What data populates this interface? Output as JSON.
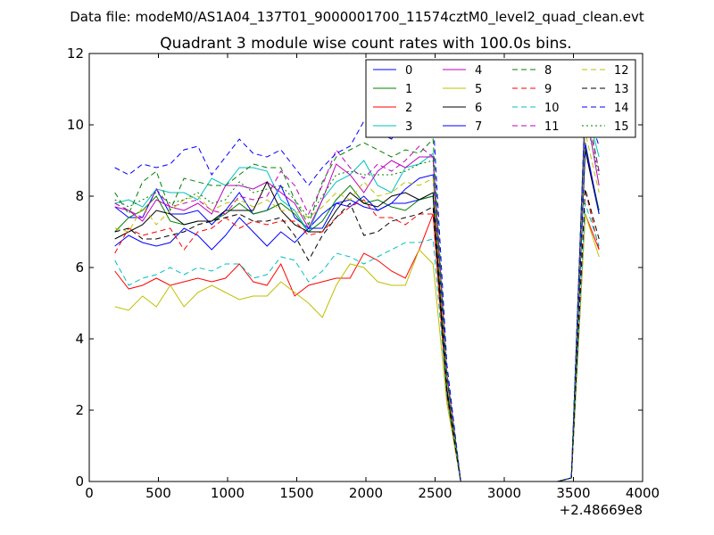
{
  "header": {
    "data_file": "Data file: modeM0/AS1A04_137T01_9000001700_11574cztM0_level2_quad_clean.evt"
  },
  "chart_data": {
    "type": "line",
    "title": "Quadrant 3 module wise count rates with 100.0s bins.",
    "xlabel": "",
    "ylabel": "",
    "x_offset_label": "+2.48669e8",
    "xlim": [
      0,
      4000
    ],
    "ylim": [
      0,
      12
    ],
    "x_ticks": [
      0,
      500,
      1000,
      1500,
      2000,
      2500,
      3000,
      3500,
      4000
    ],
    "y_ticks": [
      0,
      2,
      4,
      6,
      8,
      10,
      12
    ],
    "grid": false,
    "legend_position": "top-right",
    "x": [
      185,
      285,
      385,
      485,
      585,
      685,
      785,
      885,
      985,
      1085,
      1185,
      1285,
      1385,
      1485,
      1585,
      1685,
      1785,
      1885,
      1985,
      2085,
      2185,
      2285,
      2385,
      2485,
      2585,
      2685,
      2785,
      2885,
      2985,
      3085,
      3185,
      3285,
      3385,
      3485,
      3585,
      3685
    ],
    "series": [
      {
        "name": "0",
        "color": "#0000ff",
        "dash": "solid",
        "values": [
          7.7,
          7.4,
          7.4,
          8.2,
          7.5,
          7.5,
          7.6,
          7.2,
          7.6,
          8.1,
          7.5,
          7.6,
          8.3,
          7.4,
          7.1,
          7.5,
          7.8,
          7.9,
          7.7,
          7.6,
          7.8,
          7.8,
          7.9,
          8.0,
          2.6,
          0,
          0,
          0,
          0,
          0,
          0,
          0,
          0,
          0.1,
          9.3,
          7.6
        ]
      },
      {
        "name": "1",
        "color": "#008000",
        "dash": "solid",
        "values": [
          7.0,
          7.4,
          7.6,
          8.0,
          7.3,
          7.2,
          7.3,
          7.3,
          7.5,
          7.8,
          7.5,
          7.6,
          7.8,
          7.5,
          7.0,
          7.3,
          7.9,
          8.3,
          7.8,
          7.9,
          7.7,
          7.6,
          7.9,
          8.0,
          2.6,
          0,
          0,
          0,
          0,
          0,
          0,
          0,
          0,
          0.1,
          9.4,
          7.6
        ]
      },
      {
        "name": "2",
        "color": "#ff0000",
        "dash": "solid",
        "values": [
          5.9,
          5.4,
          5.5,
          5.7,
          5.5,
          5.6,
          5.7,
          5.6,
          5.7,
          6.1,
          5.6,
          5.5,
          6.1,
          5.2,
          5.5,
          5.6,
          5.7,
          5.7,
          6.4,
          6.2,
          5.9,
          5.7,
          6.5,
          7.5,
          2.4,
          0,
          0,
          0,
          0,
          0,
          0,
          0,
          0,
          0.1,
          7.5,
          6.5
        ]
      },
      {
        "name": "3",
        "color": "#00bfbf",
        "dash": "solid",
        "values": [
          7.8,
          7.9,
          7.7,
          8.2,
          8.1,
          8.1,
          7.9,
          8.5,
          8.3,
          8.8,
          8.8,
          8.7,
          7.9,
          7.6,
          7.0,
          7.9,
          8.4,
          8.6,
          9.0,
          8.3,
          8.1,
          8.8,
          8.9,
          9.2,
          3.0,
          0,
          0,
          0,
          0,
          0,
          0,
          0,
          0,
          0.1,
          10.6,
          9.1
        ]
      },
      {
        "name": "4",
        "color": "#bf00bf",
        "dash": "solid",
        "values": [
          7.7,
          7.6,
          7.3,
          7.9,
          7.7,
          7.6,
          7.8,
          7.5,
          8.3,
          8.3,
          8.2,
          8.4,
          8.1,
          7.8,
          7.1,
          7.9,
          8.9,
          8.6,
          8.1,
          8.7,
          9.0,
          8.8,
          9.1,
          9.1,
          3.0,
          0,
          0,
          0,
          0,
          0,
          0,
          0,
          0,
          0.1,
          10.5,
          8.3
        ]
      },
      {
        "name": "5",
        "color": "#bfbf00",
        "dash": "solid",
        "values": [
          4.9,
          4.8,
          5.2,
          4.9,
          5.5,
          4.9,
          5.3,
          5.5,
          5.3,
          5.1,
          5.2,
          5.2,
          5.6,
          5.3,
          5.0,
          4.6,
          5.5,
          6.1,
          6.0,
          5.6,
          5.5,
          5.5,
          6.5,
          6.1,
          2.2,
          0,
          0,
          0,
          0,
          0,
          0,
          0,
          0,
          0.1,
          7.5,
          6.3
        ]
      },
      {
        "name": "6",
        "color": "#000000",
        "dash": "solid",
        "values": [
          6.8,
          7.0,
          7.2,
          7.6,
          7.5,
          7.2,
          7.3,
          7.3,
          7.6,
          7.6,
          7.6,
          8.4,
          7.6,
          7.2,
          7.0,
          7.0,
          7.6,
          8.1,
          7.8,
          7.7,
          8.0,
          8.1,
          7.9,
          8.1,
          2.6,
          0,
          0,
          0,
          0,
          0,
          0,
          0,
          0,
          0.1,
          9.3,
          7.5
        ]
      },
      {
        "name": "7",
        "color": "#0000ff",
        "dash": "solid",
        "values": [
          6.6,
          6.9,
          6.7,
          6.6,
          6.7,
          7.1,
          6.9,
          6.5,
          6.9,
          7.4,
          7.0,
          6.6,
          7.0,
          6.7,
          7.1,
          7.1,
          7.8,
          7.7,
          8.0,
          7.6,
          7.8,
          8.2,
          8.5,
          8.6,
          2.9,
          0,
          0,
          0,
          0,
          0,
          0,
          0,
          0,
          0.1,
          9.5,
          7.5
        ]
      },
      {
        "name": "8",
        "color": "#008000",
        "dash": "dashed",
        "values": [
          8.1,
          7.5,
          8.4,
          8.7,
          7.6,
          8.5,
          8.4,
          8.3,
          8.3,
          8.6,
          8.9,
          8.8,
          8.8,
          7.9,
          7.2,
          8.4,
          9.1,
          9.3,
          9.5,
          9.3,
          9.1,
          9.3,
          9.2,
          9.6,
          3.1,
          0,
          0,
          0,
          0,
          0,
          0,
          0,
          0,
          0.1,
          10.7,
          8.7
        ]
      },
      {
        "name": "9",
        "color": "#ff0000",
        "dash": "dashed",
        "values": [
          6.4,
          7.1,
          6.9,
          7.0,
          7.1,
          6.5,
          7.0,
          7.1,
          7.4,
          7.1,
          7.3,
          7.2,
          7.3,
          7.3,
          6.9,
          7.0,
          7.4,
          7.7,
          7.9,
          7.4,
          7.4,
          7.2,
          7.5,
          7.5,
          2.4,
          0,
          0,
          0,
          0,
          0,
          0,
          0,
          0,
          0.1,
          8.2,
          6.5
        ]
      },
      {
        "name": "10",
        "color": "#00bfbf",
        "dash": "dashed",
        "values": [
          6.2,
          5.5,
          5.7,
          5.8,
          6.0,
          5.8,
          6.0,
          5.9,
          6.1,
          6.1,
          5.7,
          5.8,
          6.3,
          6.2,
          5.6,
          5.9,
          6.4,
          6.3,
          6.1,
          6.3,
          6.5,
          6.7,
          6.7,
          6.8,
          2.4,
          0,
          0,
          0,
          0,
          0,
          0,
          0,
          0,
          0.1,
          7.8,
          6.6
        ]
      },
      {
        "name": "11",
        "color": "#bf00bf",
        "dash": "dashed",
        "values": [
          7.8,
          7.6,
          7.4,
          8.2,
          7.7,
          7.8,
          7.9,
          7.6,
          7.5,
          8.0,
          7.9,
          8.0,
          8.7,
          8.3,
          7.5,
          8.3,
          9.3,
          8.8,
          8.5,
          8.9,
          8.7,
          9.0,
          9.4,
          9.1,
          3.0,
          0,
          0,
          0,
          0,
          0,
          0,
          0,
          0,
          0.1,
          10.5,
          8.7
        ]
      },
      {
        "name": "12",
        "color": "#bfbf00",
        "dash": "dashed",
        "values": [
          7.1,
          7.0,
          7.7,
          7.2,
          7.6,
          7.9,
          8.0,
          7.6,
          7.8,
          7.9,
          7.7,
          7.9,
          7.6,
          7.6,
          7.4,
          7.7,
          8.1,
          7.9,
          8.4,
          8.0,
          8.1,
          8.4,
          8.3,
          8.5,
          2.8,
          0,
          0,
          0,
          0,
          0,
          0,
          0,
          0,
          0.1,
          9.8,
          8.1
        ]
      },
      {
        "name": "13",
        "color": "#000000",
        "dash": "dashed",
        "values": [
          7.0,
          7.1,
          6.8,
          6.8,
          6.9,
          7.0,
          7.2,
          7.3,
          7.4,
          7.5,
          7.3,
          7.3,
          7.4,
          6.9,
          6.2,
          6.9,
          7.4,
          7.8,
          6.9,
          7.0,
          7.3,
          7.4,
          7.5,
          7.7,
          2.5,
          0,
          0,
          0,
          0,
          0,
          0,
          0,
          0,
          0.1,
          8.2,
          6.8
        ]
      },
      {
        "name": "14",
        "color": "#0000ff",
        "dash": "dashed",
        "values": [
          8.8,
          8.6,
          8.9,
          8.8,
          8.9,
          9.3,
          9.4,
          8.6,
          9.1,
          9.6,
          9.2,
          9.1,
          9.3,
          8.8,
          8.3,
          8.8,
          9.2,
          9.4,
          10.1,
          9.8,
          9.6,
          10.2,
          10.1,
          10.2,
          3.3,
          0,
          0,
          0,
          0,
          0,
          0,
          0,
          0,
          0.1,
          10.6,
          9.4
        ]
      },
      {
        "name": "15",
        "color": "#008000",
        "dash": "dotted",
        "values": [
          7.9,
          7.7,
          7.9,
          8.1,
          7.8,
          7.9,
          8.1,
          7.8,
          7.9,
          8.4,
          8.1,
          8.2,
          8.3,
          7.9,
          7.4,
          8.0,
          8.6,
          8.7,
          8.6,
          8.6,
          8.6,
          8.7,
          8.9,
          9.0,
          2.9,
          0,
          0,
          0,
          0,
          0,
          0,
          0,
          0,
          0.1,
          10.2,
          8.6
        ]
      }
    ]
  }
}
